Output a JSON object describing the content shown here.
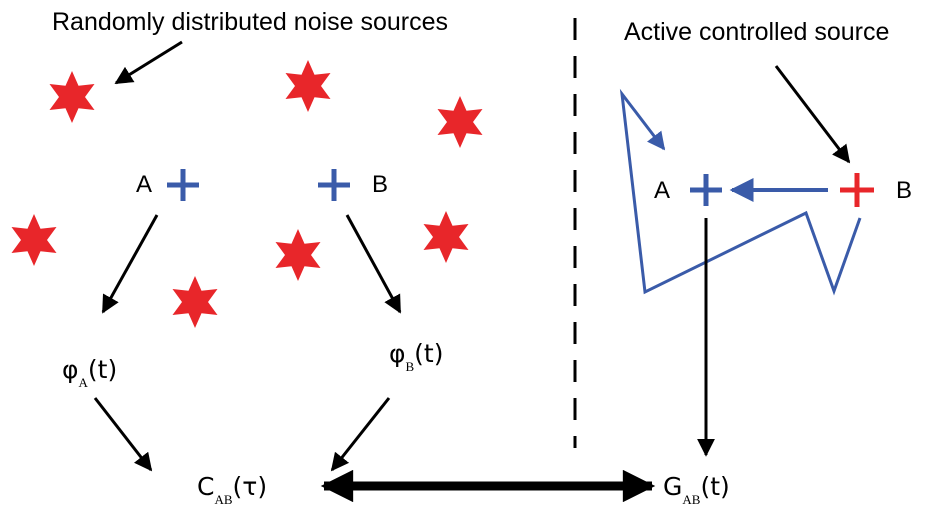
{
  "labels": {
    "left_title": "Randomly distributed noise sources",
    "right_title": "Active controlled source",
    "left_a": "A",
    "left_b": "B",
    "right_a": "A",
    "right_b": "B"
  },
  "formulas": {
    "phi_a": {
      "base": "φ",
      "sub": "A",
      "arg": "(t)"
    },
    "phi_b": {
      "base": "φ",
      "sub": "B",
      "arg": "(t)"
    },
    "c_ab": {
      "base": "C",
      "sub": "AB",
      "arg": "(τ)"
    },
    "g_ab": {
      "base": "G",
      "sub": "AB",
      "arg": "(t)"
    }
  },
  "colors": {
    "noise_star": "#e8262a",
    "receiver": "#3a5ba9",
    "source": "#e8262a",
    "arrow": "#000000"
  }
}
